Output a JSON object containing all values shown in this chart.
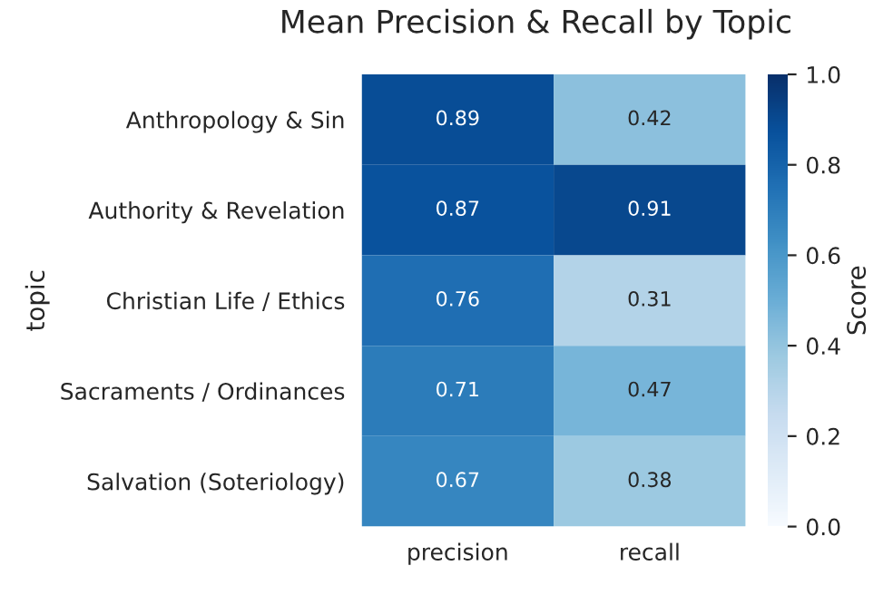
{
  "chart_data": {
    "type": "heatmap",
    "title": "Mean Precision & Recall by Topic",
    "ylabel": "topic",
    "clabel": "Score",
    "categories": [
      "precision",
      "recall"
    ],
    "y_categories": [
      "Anthropology & Sin",
      "Authority & Revelation",
      "Christian Life / Ethics",
      "Sacraments / Ordinances",
      "Salvation (Soteriology)"
    ],
    "cells": [
      [
        0.89,
        0.42
      ],
      [
        0.87,
        0.91
      ],
      [
        0.76,
        0.31
      ],
      [
        0.71,
        0.47
      ],
      [
        0.67,
        0.38
      ]
    ],
    "clim": [
      0,
      1
    ],
    "cticks": [
      {
        "value": 0,
        "label": "0.0"
      },
      {
        "value": 0.2,
        "label": "0.2"
      },
      {
        "value": 0.4,
        "label": "0.4"
      },
      {
        "value": 0.6,
        "label": "0.6"
      },
      {
        "value": 0.8,
        "label": "0.8"
      },
      {
        "value": 1,
        "label": "1.0"
      }
    ],
    "data_labels": true
  }
}
